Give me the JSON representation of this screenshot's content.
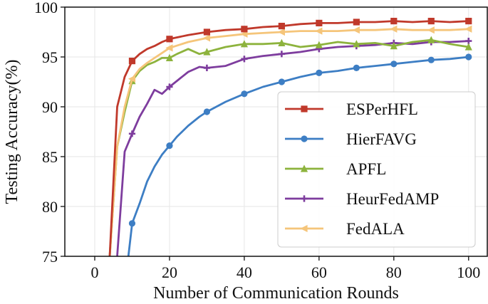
{
  "chart_data": {
    "type": "line",
    "xlabel": "Number of Communication Rounds",
    "ylabel": "Testing Accuracy(%)",
    "xlim": [
      -8,
      105
    ],
    "ylim": [
      75,
      100
    ],
    "xticks": [
      0,
      20,
      40,
      60,
      80,
      100
    ],
    "yticks": [
      75,
      80,
      85,
      90,
      95,
      100
    ],
    "grid": true,
    "legend_position": "lower-right",
    "series": [
      {
        "name": "ESPerHFL",
        "color": "#c0392b",
        "marker": "square",
        "x": [
          4,
          6,
          8,
          10,
          12,
          14,
          16,
          18,
          20,
          25,
          30,
          35,
          40,
          45,
          50,
          55,
          60,
          65,
          70,
          75,
          80,
          85,
          90,
          95,
          100
        ],
        "y": [
          75,
          90,
          93,
          94.6,
          95.3,
          95.8,
          96.1,
          96.5,
          96.8,
          97.2,
          97.5,
          97.7,
          97.8,
          98.0,
          98.1,
          98.3,
          98.4,
          98.4,
          98.5,
          98.5,
          98.6,
          98.5,
          98.6,
          98.5,
          98.6
        ]
      },
      {
        "name": "HierFAVG",
        "color": "#3d7ec4",
        "marker": "circle",
        "x": [
          9,
          10,
          12,
          14,
          16,
          18,
          20,
          22,
          25,
          28,
          30,
          35,
          40,
          45,
          50,
          55,
          60,
          65,
          70,
          75,
          80,
          85,
          90,
          95,
          100
        ],
        "y": [
          75,
          78.3,
          80.3,
          82.5,
          84,
          85.2,
          86.1,
          87,
          88.1,
          89,
          89.5,
          90.5,
          91.3,
          92,
          92.5,
          93,
          93.4,
          93.6,
          93.9,
          94.1,
          94.3,
          94.5,
          94.7,
          94.8,
          95.0
        ]
      },
      {
        "name": "APFL",
        "color": "#8db33d",
        "marker": "triangle",
        "x": [
          4,
          6,
          8,
          10,
          12,
          14,
          16,
          18,
          20,
          22,
          25,
          28,
          30,
          35,
          40,
          45,
          50,
          55,
          60,
          65,
          70,
          75,
          80,
          85,
          90,
          95,
          100
        ],
        "y": [
          75,
          86,
          89.5,
          92.6,
          93.6,
          94.2,
          94.5,
          94.9,
          94.9,
          95.3,
          95.8,
          95.3,
          95.5,
          96.0,
          96.3,
          96.3,
          96.4,
          96.0,
          96.2,
          96.5,
          96.3,
          96.4,
          96.1,
          96.5,
          96.7,
          96.3,
          96.0
        ]
      },
      {
        "name": "HeurFedAMP",
        "color": "#7e3d9e",
        "marker": "plus",
        "x": [
          6,
          8,
          10,
          12,
          14,
          16,
          18,
          20,
          22,
          25,
          28,
          30,
          35,
          40,
          45,
          50,
          55,
          60,
          65,
          70,
          75,
          80,
          85,
          90,
          95,
          100
        ],
        "y": [
          75,
          85.5,
          87.3,
          89,
          90.3,
          91.7,
          91.3,
          92,
          92.6,
          93.5,
          94.0,
          93.9,
          94.1,
          94.8,
          95.1,
          95.3,
          95.5,
          95.8,
          96.0,
          96.1,
          96.2,
          96.4,
          96.3,
          96.5,
          96.5,
          96.6
        ]
      },
      {
        "name": "FedALA",
        "color": "#f5c57a",
        "marker": "left-triangle",
        "x": [
          4,
          6,
          8,
          10,
          12,
          14,
          16,
          18,
          20,
          25,
          30,
          35,
          40,
          45,
          50,
          55,
          60,
          65,
          70,
          75,
          80,
          85,
          90,
          95,
          100
        ],
        "y": [
          75,
          86,
          90,
          92.8,
          93.8,
          94.4,
          94.9,
          95.4,
          95.9,
          96.5,
          96.9,
          97.1,
          97.3,
          97.4,
          97.5,
          97.6,
          97.6,
          97.6,
          97.7,
          97.7,
          97.8,
          97.7,
          97.7,
          97.7,
          97.8
        ]
      }
    ]
  }
}
